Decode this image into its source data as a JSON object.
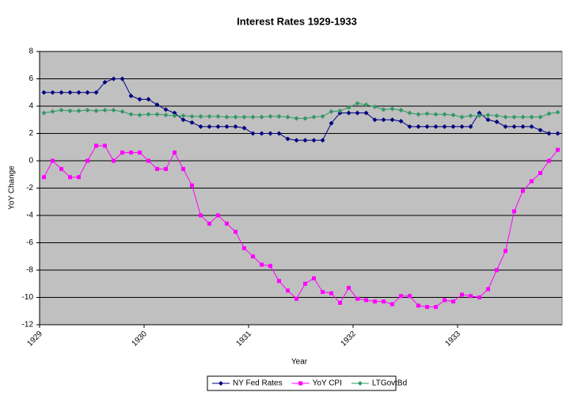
{
  "chart_data": {
    "type": "line",
    "title": "Interest Rates 1929-1933",
    "x_label": "Year",
    "y_label": "YoY Change",
    "categories": [
      "1929",
      null,
      null,
      null,
      null,
      null,
      null,
      null,
      null,
      null,
      null,
      null,
      "1930",
      null,
      null,
      null,
      null,
      null,
      null,
      null,
      null,
      null,
      null,
      null,
      "1931",
      null,
      null,
      null,
      null,
      null,
      null,
      null,
      null,
      null,
      null,
      null,
      "1932",
      null,
      null,
      null,
      null,
      null,
      null,
      null,
      null,
      null,
      null,
      null,
      "1933",
      null,
      null,
      null,
      null,
      null,
      null,
      null,
      null,
      null,
      null,
      null
    ],
    "series": [
      {
        "name": "NY Fed Rates",
        "color": "#000080",
        "marker": "diamond",
        "values": [
          5,
          5,
          5,
          5,
          5,
          5,
          5,
          5.75,
          6,
          6,
          4.75,
          4.5,
          4.5,
          4.1,
          3.75,
          3.5,
          3,
          2.8,
          2.5,
          2.5,
          2.5,
          2.5,
          2.5,
          2.4,
          2,
          2,
          2,
          2,
          1.6,
          1.5,
          1.5,
          1.5,
          1.5,
          2.75,
          3.5,
          3.5,
          3.5,
          3.5,
          3,
          3,
          3,
          2.9,
          2.5,
          2.5,
          2.5,
          2.5,
          2.5,
          2.5,
          2.5,
          2.5,
          3.5,
          3,
          2.85,
          2.5,
          2.5,
          2.5,
          2.5,
          2.25,
          2,
          2
        ]
      },
      {
        "name": "YoY CPI",
        "color": "#ff00ff",
        "marker": "square",
        "values": [
          -1.2,
          0,
          -0.6,
          -1.2,
          -1.2,
          0,
          1.1,
          1.1,
          0,
          0.6,
          0.6,
          0.6,
          0,
          -0.6,
          -0.6,
          0.6,
          -0.6,
          -1.8,
          -4,
          -4.6,
          -4,
          -4.6,
          -5.2,
          -6.4,
          -7,
          -7.6,
          -7.7,
          -8.8,
          -9.5,
          -10.1,
          -9,
          -8.6,
          -9.6,
          -9.7,
          -10.4,
          -9.3,
          -10.1,
          -10.2,
          -10.3,
          -10.3,
          -10.5,
          -9.9,
          -9.9,
          -10.6,
          -10.7,
          -10.7,
          -10.2,
          -10.3,
          -9.8,
          -9.9,
          -10,
          -9.4,
          -8,
          -6.6,
          -3.7,
          -2.2,
          -1.5,
          -0.9,
          0,
          0.8
        ]
      },
      {
        "name": "LTGovtBd",
        "color": "#339966",
        "marker": "diamond",
        "values": [
          3.5,
          3.6,
          3.7,
          3.65,
          3.65,
          3.7,
          3.65,
          3.7,
          3.7,
          3.6,
          3.4,
          3.35,
          3.4,
          3.4,
          3.35,
          3.3,
          3.3,
          3.25,
          3.25,
          3.25,
          3.25,
          3.2,
          3.2,
          3.2,
          3.2,
          3.2,
          3.25,
          3.25,
          3.2,
          3.1,
          3.1,
          3.2,
          3.25,
          3.6,
          3.65,
          3.9,
          4.2,
          4.1,
          3.95,
          3.75,
          3.8,
          3.7,
          3.5,
          3.4,
          3.45,
          3.4,
          3.4,
          3.35,
          3.2,
          3.3,
          3.3,
          3.35,
          3.3,
          3.2,
          3.2,
          3.2,
          3.2,
          3.2,
          3.45,
          3.55
        ]
      }
    ],
    "ylim": [
      -12,
      8
    ],
    "yticks": [
      -12,
      -10,
      -8,
      -6,
      -4,
      -2,
      0,
      2,
      4,
      6,
      8
    ],
    "grid": true,
    "plot_background": "#c0c0c0",
    "legend": "bottom"
  }
}
